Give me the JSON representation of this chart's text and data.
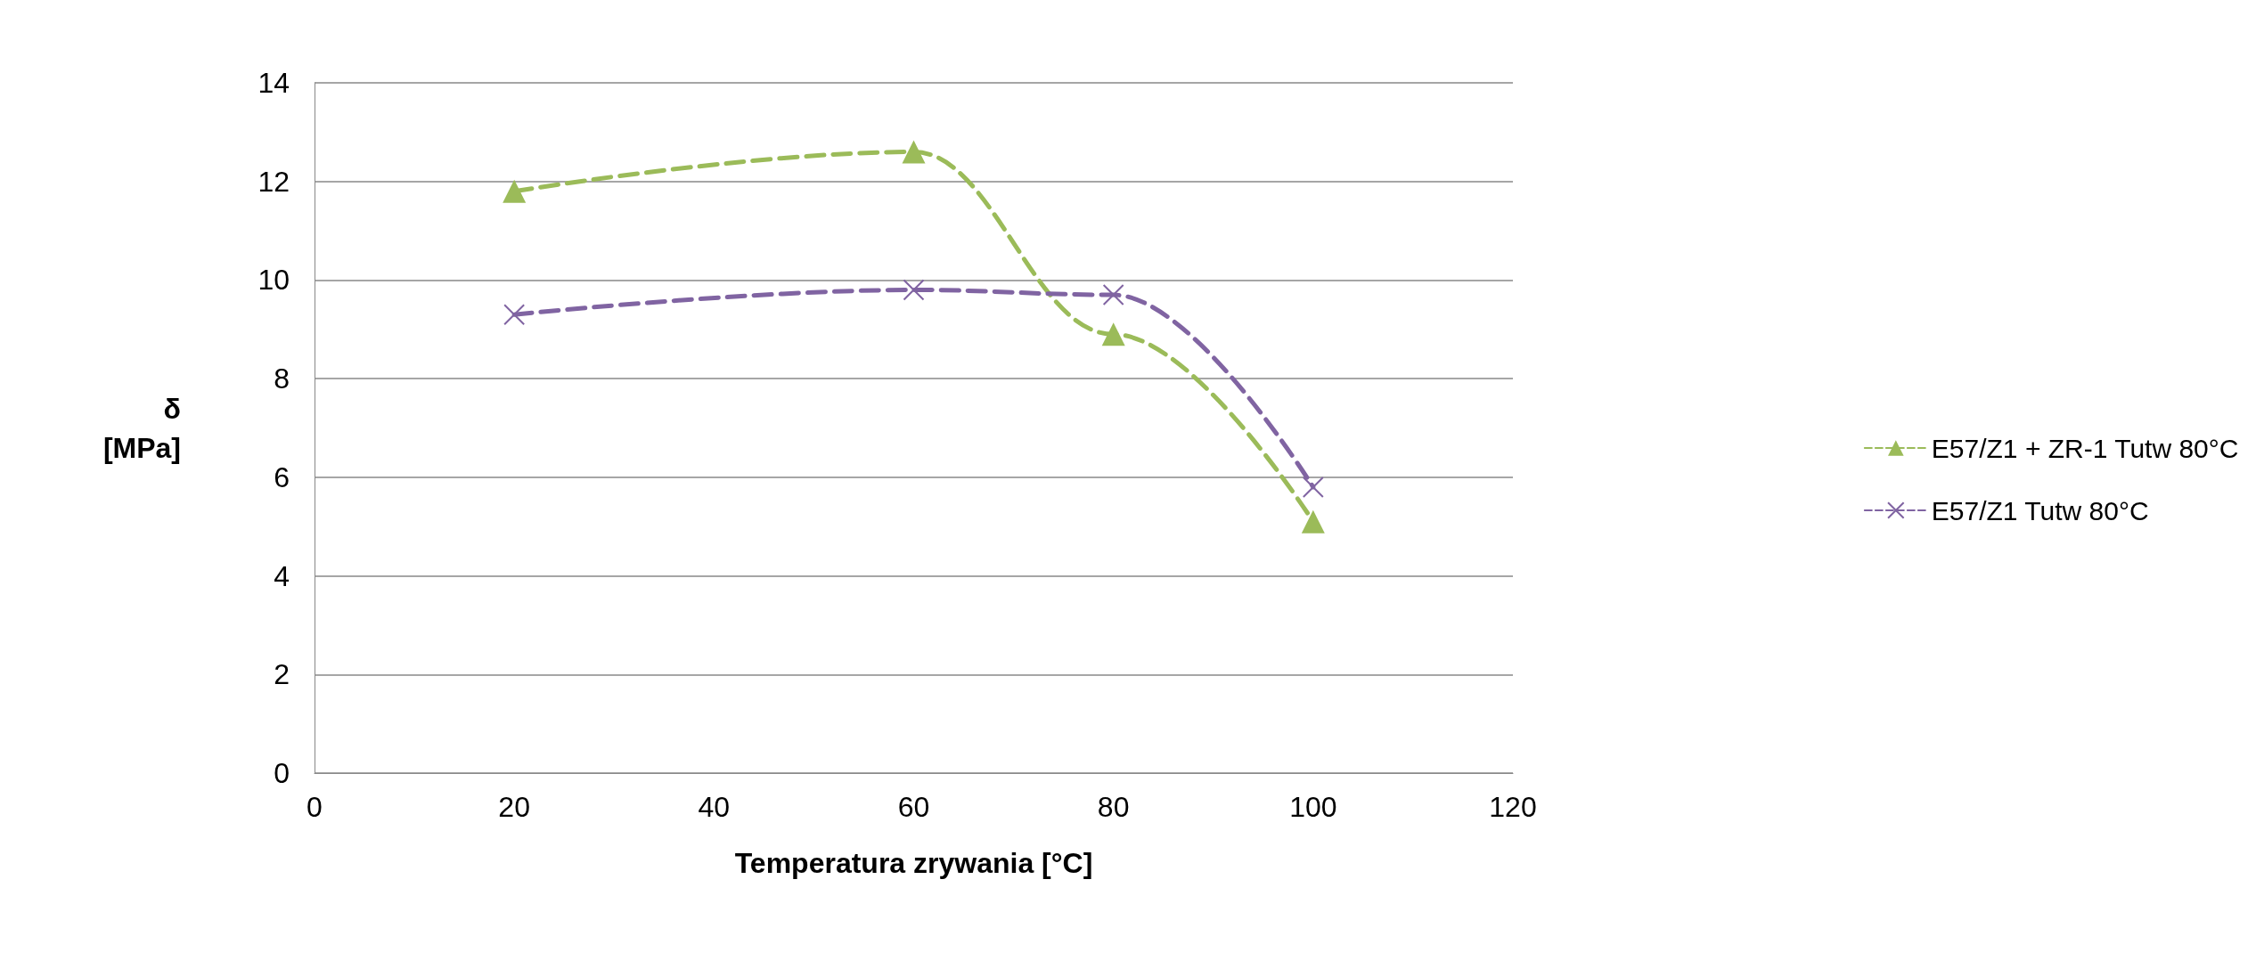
{
  "chart_data": {
    "type": "line",
    "xlabel": "Temperatura zrywania [°C]",
    "ylabel": "δ\n[MPa]",
    "x": [
      20,
      60,
      80,
      100
    ],
    "series": [
      {
        "name": "E57/Z1 + ZR-1 Tutw 80°C",
        "color": "#9bbb59",
        "values": [
          11.8,
          12.6,
          8.9,
          5.1
        ],
        "marker": "triangle"
      },
      {
        "name": "E57/Z1 Tutw 80°C",
        "color": "#8064a2",
        "values": [
          9.3,
          9.8,
          9.7,
          5.8
        ],
        "marker": "cross"
      }
    ],
    "xlim": [
      0,
      120
    ],
    "xticks": [
      0,
      20,
      40,
      60,
      80,
      100,
      120
    ],
    "ylim": [
      0,
      14
    ],
    "yticks": [
      0,
      2,
      4,
      6,
      8,
      10,
      12,
      14
    ],
    "grid": "y",
    "legend": "right",
    "line_style": "dashed"
  }
}
